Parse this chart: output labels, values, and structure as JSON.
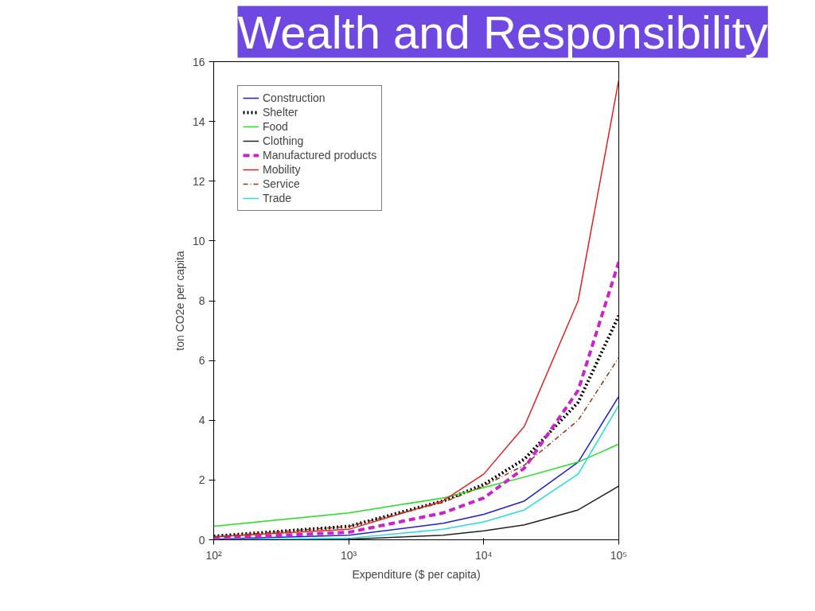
{
  "chart_data": {
    "type": "line",
    "title": "Wealth and Responsibility",
    "xlabel": "Expenditure ($ per capita)",
    "ylabel": "ton CO2e per capita",
    "log": "x",
    "xlim": [
      100,
      100000
    ],
    "xticks": [
      {
        "value": 100,
        "label": "10²"
      },
      {
        "value": 1000,
        "label": "10³"
      },
      {
        "value": 10000,
        "label": "10⁴"
      },
      {
        "value": 100000,
        "label": "10⁵"
      }
    ],
    "ylim": [
      0,
      16
    ],
    "yticks": [
      0,
      2,
      4,
      6,
      8,
      10,
      12,
      14,
      16
    ],
    "grid": false,
    "legend": "top left",
    "x": [
      100,
      1000,
      5000,
      10000,
      20000,
      50000,
      100000
    ],
    "series": [
      {
        "name": "Construction",
        "color": "#1f1fd0",
        "line_style": "solid",
        "values": [
          0.02,
          0.15,
          0.55,
          0.85,
          1.3,
          2.6,
          4.8
        ]
      },
      {
        "name": "Shelter",
        "color": "#000000",
        "line_style": "dotted",
        "values": [
          0.12,
          0.45,
          1.3,
          1.85,
          2.7,
          4.6,
          7.5
        ]
      },
      {
        "name": "Food",
        "color": "#22dd22",
        "line_style": "solid",
        "values": [
          0.45,
          0.9,
          1.4,
          1.75,
          2.1,
          2.6,
          3.2
        ]
      },
      {
        "name": "Clothing",
        "color": "#222222",
        "line_style": "solid",
        "values": [
          0.0,
          0.02,
          0.15,
          0.3,
          0.5,
          1.0,
          1.8
        ]
      },
      {
        "name": "Manufactured products",
        "color": "#cc22cc",
        "line_style": "dashed",
        "values": [
          0.05,
          0.25,
          0.9,
          1.4,
          2.4,
          5.0,
          9.3
        ]
      },
      {
        "name": "Mobility",
        "color": "#dd2222",
        "line_style": "solid",
        "values": [
          0.1,
          0.35,
          1.3,
          2.2,
          3.8,
          8.0,
          15.4
        ]
      },
      {
        "name": "Service",
        "color": "#993311",
        "line_style": "dashdot",
        "values": [
          0.1,
          0.45,
          1.25,
          1.8,
          2.5,
          4.0,
          6.1
        ]
      },
      {
        "name": "Trade",
        "color": "#22dddd",
        "line_style": "solid",
        "values": [
          0.0,
          0.05,
          0.35,
          0.6,
          1.0,
          2.2,
          4.5
        ]
      }
    ]
  }
}
